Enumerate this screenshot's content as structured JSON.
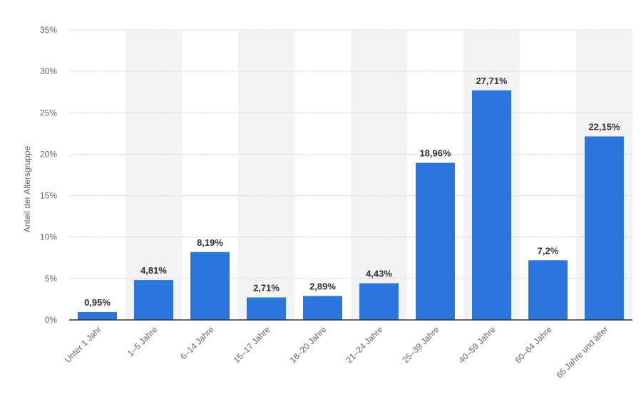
{
  "colors": {
    "bar": "#2a76dd",
    "band": "#f3f3f3",
    "grid": "#c8c8c8",
    "axis": "#333333",
    "text": "#666666",
    "value_text": "#333333"
  },
  "chart_data": {
    "type": "bar",
    "title": "",
    "xlabel": "",
    "ylabel": "Anteil der Altersgruppe",
    "categories": [
      "Unter 1 Jahr",
      "1–5 Jahre",
      "6–14 Jahre",
      "15–17 Jahre",
      "18–20 Jahre",
      "21–24 Jahre",
      "25–39 Jahre",
      "40–59 Jahre",
      "60–64 Jahre",
      "65 Jahre und älter"
    ],
    "values": [
      0.95,
      4.81,
      8.19,
      2.71,
      2.89,
      4.43,
      18.96,
      27.71,
      7.2,
      22.15
    ],
    "value_labels": [
      "0,95%",
      "4,81%",
      "8,19%",
      "2,71%",
      "2,89%",
      "4,43%",
      "18,96%",
      "27,71%",
      "7,2%",
      "22,15%"
    ],
    "ylim": [
      0,
      35
    ],
    "yticks": [
      0,
      5,
      10,
      15,
      20,
      25,
      30,
      35
    ],
    "ytick_labels": [
      "0%",
      "5%",
      "10%",
      "15%",
      "20%",
      "25%",
      "30%",
      "35%"
    ],
    "grid": true,
    "legend": "none"
  }
}
